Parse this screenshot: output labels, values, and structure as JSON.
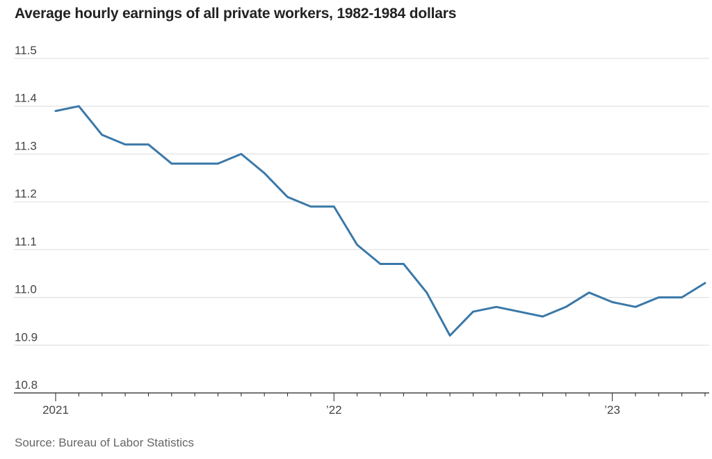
{
  "chart_data": {
    "type": "line",
    "title": "Average hourly earnings of all private workers, 1982-1984 dollars",
    "xlabel": "",
    "ylabel": "",
    "ylim": [
      10.8,
      11.5
    ],
    "yticks": [
      "11.5",
      "11.4",
      "11.3",
      "11.2",
      "11.1",
      "11.0",
      "10.9",
      "10.8"
    ],
    "ytick_values": [
      11.5,
      11.4,
      11.3,
      11.2,
      11.1,
      11.0,
      10.9,
      10.8
    ],
    "x_labels": [
      {
        "label": "2021",
        "month_index": 0
      },
      {
        "label": "’22",
        "month_index": 12
      },
      {
        "label": "’23",
        "month_index": 24
      }
    ],
    "x_month_count": 29,
    "grid": true,
    "series": [
      {
        "name": "Average hourly earnings",
        "color": "#3a78a8",
        "values": [
          11.39,
          11.4,
          11.34,
          11.32,
          11.32,
          11.28,
          11.28,
          11.28,
          11.3,
          11.26,
          11.21,
          11.19,
          11.19,
          11.11,
          11.07,
          11.07,
          11.01,
          10.92,
          10.97,
          10.98,
          10.97,
          10.96,
          10.98,
          11.01,
          10.99,
          10.98,
          11.0,
          11.0,
          11.03
        ]
      }
    ]
  },
  "source": "Source: Bureau of Labor Statistics"
}
